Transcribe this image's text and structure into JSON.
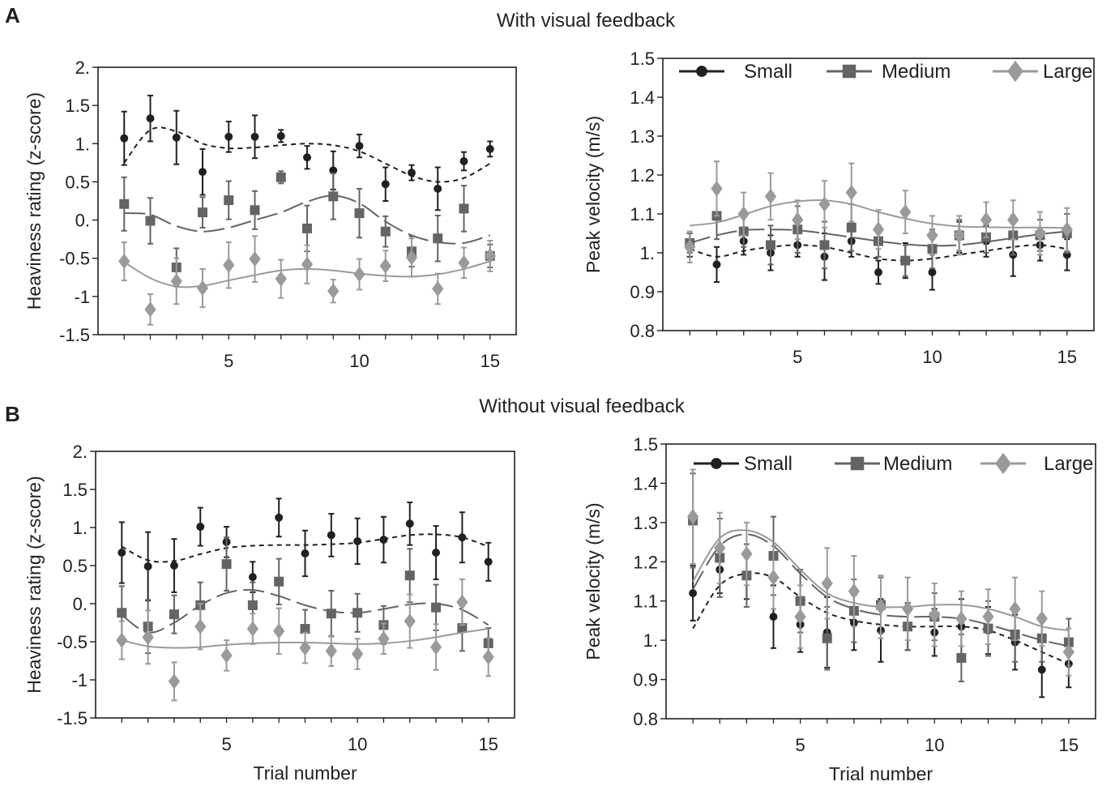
{
  "panels": {
    "A": {
      "letter": "A",
      "title": "With visual feedback"
    },
    "B": {
      "letter": "B",
      "title": "Without visual feedback"
    }
  },
  "colors": {
    "small": "#231f20",
    "medium": "#646464",
    "large": "#9a9a9a",
    "axis": "#231f20"
  },
  "chart_data": [
    {
      "id": "A-heaviness",
      "type": "scatter",
      "xlabel": "",
      "ylabel": "Heaviness rating (z-score)",
      "xlim": [
        0,
        16
      ],
      "ylim": [
        -1.5,
        2
      ],
      "xticks": [
        5,
        10,
        15
      ],
      "yticks": [
        2,
        1.5,
        1,
        0.5,
        0,
        -0.5,
        -1,
        -1.5
      ],
      "ytick_labels": [
        "2.",
        "1.5",
        "1.",
        "0.5",
        "0.",
        "-0.5",
        "-1",
        "-1.5"
      ],
      "legend": null,
      "series": [
        {
          "name": "Small",
          "marker": "circle",
          "dash": "6,5",
          "x": [
            1,
            2,
            3,
            4,
            5,
            6,
            7,
            8,
            9,
            10,
            11,
            12,
            13,
            14,
            15
          ],
          "y": [
            1.07,
            1.33,
            1.08,
            0.63,
            1.09,
            1.09,
            1.1,
            0.82,
            0.65,
            0.97,
            0.47,
            0.62,
            0.41,
            0.77,
            0.93
          ],
          "err": [
            0.35,
            0.3,
            0.35,
            0.3,
            0.2,
            0.28,
            0.08,
            0.15,
            0.25,
            0.15,
            0.22,
            0.1,
            0.28,
            0.12,
            0.1
          ],
          "trend": [
            0.75,
            1.18,
            1.16,
            1.0,
            0.94,
            0.95,
            0.98,
            1.0,
            0.98,
            0.9,
            0.74,
            0.58,
            0.5,
            0.55,
            0.74
          ]
        },
        {
          "name": "Medium",
          "marker": "square",
          "dash": "26,8",
          "x": [
            1,
            2,
            3,
            4,
            5,
            6,
            7,
            8,
            9,
            10,
            11,
            12,
            13,
            14,
            15
          ],
          "y": [
            0.21,
            -0.01,
            -0.62,
            0.1,
            0.26,
            0.13,
            0.56,
            -0.11,
            0.31,
            0.09,
            -0.15,
            -0.41,
            -0.24,
            0.15,
            -0.47
          ],
          "err": [
            0.35,
            0.3,
            0.25,
            0.2,
            0.25,
            0.25,
            0.08,
            0.3,
            0.3,
            0.32,
            0.2,
            0.2,
            0.3,
            0.3,
            0.15
          ],
          "trend": [
            0.09,
            0.07,
            -0.08,
            -0.15,
            -0.1,
            0.0,
            0.1,
            0.24,
            0.32,
            0.22,
            -0.02,
            -0.2,
            -0.29,
            -0.3,
            -0.2
          ]
        },
        {
          "name": "Large",
          "marker": "diamond",
          "dash": "",
          "x": [
            1,
            2,
            3,
            4,
            5,
            6,
            7,
            8,
            9,
            10,
            11,
            12,
            13,
            14,
            15
          ],
          "y": [
            -0.54,
            -1.17,
            -0.8,
            -0.89,
            -0.59,
            -0.51,
            -0.77,
            -0.58,
            -0.93,
            -0.71,
            -0.6,
            -0.49,
            -0.9,
            -0.56,
            -0.47
          ],
          "err": [
            0.25,
            0.2,
            0.3,
            0.25,
            0.3,
            0.3,
            0.25,
            0.25,
            0.15,
            0.2,
            0.2,
            0.25,
            0.2,
            0.2,
            0.2
          ],
          "trend": [
            -0.55,
            -0.76,
            -0.87,
            -0.86,
            -0.79,
            -0.72,
            -0.66,
            -0.64,
            -0.66,
            -0.7,
            -0.73,
            -0.74,
            -0.71,
            -0.64,
            -0.54
          ]
        }
      ]
    },
    {
      "id": "A-velocity",
      "type": "scatter",
      "xlabel": "",
      "ylabel": "Peak velocity (m/s)",
      "xlim": [
        0,
        16
      ],
      "ylim": [
        0.8,
        1.5
      ],
      "xticks": [
        5,
        10,
        15
      ],
      "yticks": [
        1.5,
        1.4,
        1.3,
        1.2,
        1.1,
        1,
        0.9,
        0.8
      ],
      "ytick_labels": [
        "1.5",
        "1.4",
        "1.3",
        "1.2",
        "1.1",
        "1.",
        "0.9",
        "0.8"
      ],
      "legend": "top",
      "series": [
        {
          "name": "Small",
          "marker": "circle",
          "dash": "6,5",
          "x": [
            1,
            2,
            3,
            4,
            5,
            6,
            7,
            8,
            9,
            10,
            11,
            12,
            13,
            14,
            15
          ],
          "y": [
            1.02,
            0.97,
            1.03,
            1.0,
            1.02,
            0.99,
            1.03,
            0.95,
            0.98,
            0.95,
            1.04,
            1.03,
            0.995,
            1.02,
            0.995
          ],
          "err": [
            0.03,
            0.045,
            0.035,
            0.045,
            0.03,
            0.06,
            0.04,
            0.03,
            0.045,
            0.045,
            0.04,
            0.04,
            0.055,
            0.04,
            0.04
          ],
          "trend": [
            1.01,
            0.99,
            1.005,
            1.015,
            1.02,
            1.015,
            1.0,
            0.985,
            0.98,
            0.985,
            0.995,
            1.005,
            1.015,
            1.02,
            1.01
          ]
        },
        {
          "name": "Medium",
          "marker": "square",
          "dash": "26,8",
          "x": [
            1,
            2,
            3,
            4,
            5,
            6,
            7,
            8,
            9,
            10,
            11,
            12,
            13,
            14,
            15
          ],
          "y": [
            1.025,
            1.095,
            1.055,
            1.02,
            1.06,
            1.02,
            1.065,
            1.03,
            0.98,
            1.01,
            1.045,
            1.04,
            1.045,
            1.045,
            1.05
          ],
          "err": [
            0.025,
            0.06,
            0.04,
            0.05,
            0.06,
            0.06,
            0.06,
            0.04,
            0.04,
            0.05,
            0.04,
            0.04,
            0.05,
            0.04,
            0.05
          ],
          "trend": [
            1.025,
            1.045,
            1.058,
            1.06,
            1.058,
            1.05,
            1.04,
            1.03,
            1.022,
            1.018,
            1.02,
            1.028,
            1.038,
            1.048,
            1.055
          ]
        },
        {
          "name": "Large",
          "marker": "diamond",
          "dash": "",
          "x": [
            1,
            2,
            3,
            4,
            5,
            6,
            7,
            8,
            9,
            10,
            11,
            12,
            13,
            14,
            15
          ],
          "y": [
            1.015,
            1.165,
            1.1,
            1.145,
            1.085,
            1.125,
            1.155,
            1.06,
            1.105,
            1.045,
            1.045,
            1.085,
            1.085,
            1.05,
            1.06
          ],
          "err": [
            0.04,
            0.07,
            0.055,
            0.06,
            0.05,
            0.06,
            0.075,
            0.05,
            0.055,
            0.05,
            0.05,
            0.045,
            0.05,
            0.055,
            0.055
          ],
          "trend": [
            1.07,
            1.078,
            1.098,
            1.12,
            1.132,
            1.135,
            1.125,
            1.105,
            1.088,
            1.075,
            1.068,
            1.066,
            1.065,
            1.065,
            1.064
          ]
        }
      ]
    },
    {
      "id": "B-heaviness",
      "type": "scatter",
      "xlabel": "Trial number",
      "ylabel": "Heaviness rating (z-score)",
      "xlim": [
        0,
        16
      ],
      "ylim": [
        -1.5,
        2
      ],
      "xticks": [
        5,
        10,
        15
      ],
      "yticks": [
        2,
        1.5,
        1,
        0.5,
        0,
        -0.5,
        -1,
        -1.5
      ],
      "ytick_labels": [
        "2.",
        "1.5",
        "1.",
        "0.5",
        "0.",
        "-0.5",
        "-1",
        "-1.5"
      ],
      "legend": null,
      "series": [
        {
          "name": "Small",
          "marker": "circle",
          "dash": "6,5",
          "x": [
            1,
            2,
            3,
            4,
            5,
            6,
            7,
            8,
            9,
            10,
            11,
            12,
            13,
            14,
            15
          ],
          "y": [
            0.67,
            0.49,
            0.5,
            1.01,
            0.81,
            0.35,
            1.13,
            0.66,
            0.9,
            0.82,
            0.84,
            1.05,
            0.67,
            0.87,
            0.55
          ],
          "err": [
            0.4,
            0.45,
            0.35,
            0.25,
            0.2,
            0.2,
            0.25,
            0.3,
            0.28,
            0.3,
            0.3,
            0.28,
            0.35,
            0.33,
            0.25
          ],
          "trend": [
            0.75,
            0.57,
            0.56,
            0.65,
            0.73,
            0.76,
            0.77,
            0.77,
            0.78,
            0.8,
            0.85,
            0.9,
            0.91,
            0.87,
            0.75
          ]
        },
        {
          "name": "Medium",
          "marker": "square",
          "dash": "26,8",
          "x": [
            1,
            2,
            3,
            4,
            5,
            6,
            7,
            8,
            9,
            10,
            11,
            12,
            13,
            14,
            15
          ],
          "y": [
            -0.12,
            -0.3,
            -0.14,
            -0.02,
            0.52,
            -0.02,
            0.29,
            -0.33,
            -0.13,
            -0.12,
            -0.28,
            0.37,
            -0.05,
            -0.32,
            -0.52
          ],
          "err": [
            0.35,
            0.35,
            0.25,
            0.3,
            0.35,
            0.3,
            0.3,
            0.25,
            0.3,
            0.25,
            0.25,
            0.35,
            0.3,
            0.3,
            0.2
          ],
          "trend": [
            -0.15,
            -0.38,
            -0.25,
            -0.02,
            0.14,
            0.18,
            0.1,
            -0.02,
            -0.1,
            -0.12,
            -0.07,
            -0.01,
            0.0,
            -0.08,
            -0.28
          ]
        },
        {
          "name": "Large",
          "marker": "diamond",
          "dash": "",
          "x": [
            1,
            2,
            3,
            4,
            5,
            6,
            7,
            8,
            9,
            10,
            11,
            12,
            13,
            14,
            15
          ],
          "y": [
            -0.48,
            -0.44,
            -1.02,
            -0.3,
            -0.68,
            -0.33,
            -0.36,
            -0.58,
            -0.62,
            -0.66,
            -0.46,
            -0.23,
            -0.57,
            0.02,
            -0.7
          ],
          "err": [
            0.25,
            0.35,
            0.25,
            0.3,
            0.2,
            0.2,
            0.3,
            0.2,
            0.2,
            0.2,
            0.2,
            0.35,
            0.3,
            0.3,
            0.25
          ],
          "trend": [
            -0.48,
            -0.56,
            -0.58,
            -0.57,
            -0.54,
            -0.52,
            -0.51,
            -0.51,
            -0.52,
            -0.53,
            -0.52,
            -0.49,
            -0.44,
            -0.38,
            -0.33
          ]
        }
      ]
    },
    {
      "id": "B-velocity",
      "type": "scatter",
      "xlabel": "Trial number",
      "ylabel": "Peak velocity (m/s)",
      "xlim": [
        0,
        16
      ],
      "ylim": [
        0.8,
        1.5
      ],
      "xticks": [
        5,
        10,
        15
      ],
      "yticks": [
        1.5,
        1.4,
        1.3,
        1.2,
        1.1,
        1,
        0.9,
        0.8
      ],
      "ytick_labels": [
        "1.5",
        "1.4",
        "1.3",
        "1.2",
        "1.1",
        "1.",
        "0.9",
        "0.8"
      ],
      "legend": "top",
      "series": [
        {
          "name": "Small",
          "marker": "circle",
          "dash": "6,5",
          "x": [
            1,
            2,
            3,
            4,
            5,
            6,
            7,
            8,
            9,
            10,
            11,
            12,
            13,
            14,
            15
          ],
          "y": [
            1.12,
            1.18,
            1.165,
            1.06,
            1.04,
            1.02,
            1.045,
            1.025,
            1.035,
            1.02,
            1.035,
            1.025,
            0.995,
            0.925,
            0.94
          ],
          "err": [
            0.07,
            0.06,
            0.06,
            0.08,
            0.07,
            0.09,
            0.07,
            0.08,
            0.06,
            0.06,
            0.07,
            0.06,
            0.07,
            0.07,
            0.06
          ],
          "trend": [
            1.03,
            1.14,
            1.17,
            1.16,
            1.11,
            1.07,
            1.05,
            1.04,
            1.035,
            1.035,
            1.035,
            1.025,
            1.0,
            0.97,
            0.94
          ]
        },
        {
          "name": "Medium",
          "marker": "square",
          "dash": "26,8",
          "x": [
            1,
            2,
            3,
            4,
            5,
            6,
            7,
            8,
            9,
            10,
            11,
            12,
            13,
            14,
            15
          ],
          "y": [
            1.305,
            1.21,
            1.165,
            1.215,
            1.1,
            1.005,
            1.075,
            1.09,
            1.035,
            1.06,
            0.955,
            1.03,
            1.015,
            1.005,
            0.995
          ],
          "err": [
            0.12,
            0.1,
            0.08,
            0.1,
            0.08,
            0.08,
            0.08,
            0.07,
            0.06,
            0.06,
            0.06,
            0.07,
            0.07,
            0.06,
            0.06
          ],
          "trend": [
            1.13,
            1.24,
            1.27,
            1.24,
            1.17,
            1.11,
            1.08,
            1.065,
            1.06,
            1.06,
            1.055,
            1.04,
            1.02,
            1.0,
            0.985
          ]
        },
        {
          "name": "Large",
          "marker": "diamond",
          "dash": "",
          "x": [
            1,
            2,
            3,
            4,
            5,
            6,
            7,
            8,
            9,
            10,
            11,
            12,
            13,
            14,
            15
          ],
          "y": [
            1.315,
            1.235,
            1.22,
            1.16,
            1.06,
            1.145,
            1.125,
            1.085,
            1.08,
            1.065,
            1.055,
            1.06,
            1.08,
            1.055,
            0.97
          ],
          "err": [
            0.12,
            0.09,
            0.08,
            0.08,
            0.08,
            0.09,
            0.09,
            0.08,
            0.08,
            0.08,
            0.07,
            0.07,
            0.08,
            0.07,
            0.06
          ],
          "trend": [
            1.15,
            1.26,
            1.28,
            1.25,
            1.18,
            1.12,
            1.095,
            1.085,
            1.085,
            1.09,
            1.09,
            1.08,
            1.06,
            1.035,
            1.025
          ]
        }
      ]
    }
  ]
}
